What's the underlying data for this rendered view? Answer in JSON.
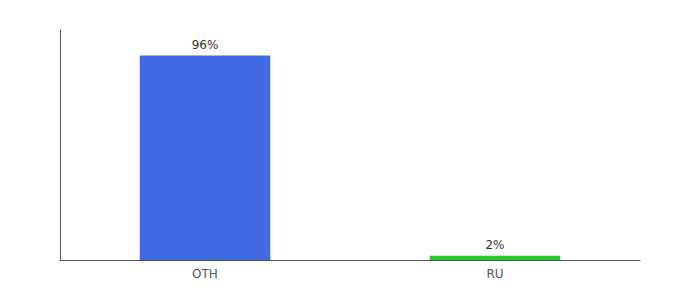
{
  "chart_data": {
    "type": "bar",
    "categories": [
      "OTH",
      "RU"
    ],
    "values": [
      96,
      2
    ],
    "value_labels": [
      "96%",
      "2%"
    ],
    "colors": [
      "#4169e1",
      "#22cc22"
    ],
    "ylim": [
      0,
      108
    ],
    "yticks": [],
    "grid": false,
    "data_labels": true,
    "tick_labels": "x"
  }
}
